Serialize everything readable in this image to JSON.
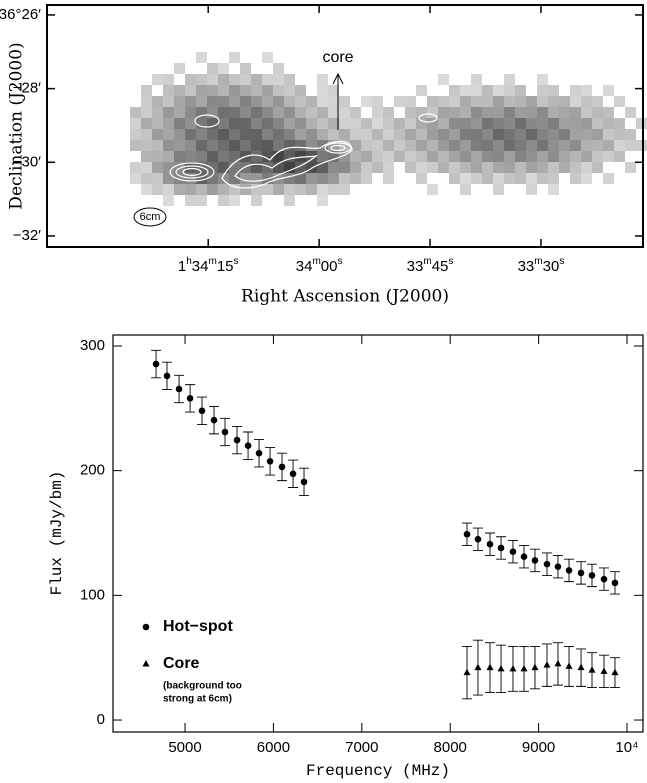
{
  "chart_data": [
    {
      "type": "image",
      "xlabel": "Right Ascension (J2000)",
      "ylabel": "Declination (J2000)",
      "xlim": [
        96.8,
        16.2
      ],
      "ylim": [
        -32.3,
        -25.73
      ],
      "xticks": [
        {
          "value": 75,
          "label": "1h34m15s"
        },
        {
          "value": 60,
          "label": "34m00s"
        },
        {
          "value": 45,
          "label": "33m45s"
        },
        {
          "value": 30,
          "label": "33m30s"
        }
      ],
      "yticks": [
        {
          "value": -26,
          "label": "−36°26′"
        },
        {
          "value": -28,
          "label": "−28′"
        },
        {
          "value": -30,
          "label": "−30′"
        },
        {
          "value": -32,
          "label": "−32′"
        }
      ],
      "annotations": [
        "core",
        "6cm"
      ]
    },
    {
      "type": "scatter",
      "xlabel": "Frequency (MHz)",
      "ylabel": "Flux (mJy/bm)",
      "xlim": [
        4185,
        10181
      ],
      "ylim": [
        -9.6,
        308.8
      ],
      "xticks": [
        5000,
        6000,
        7000,
        8000,
        9000,
        {
          "value": 10000,
          "label": "10⁴"
        }
      ],
      "yticks": [
        0,
        100,
        200,
        300
      ],
      "series": [
        {
          "name": "Hot−spot",
          "color": "#000000",
          "marker": "circle",
          "x": [
            4672,
            4796,
            4932,
            5057,
            5192,
            5328,
            5452,
            5588,
            5713,
            5837,
            5962,
            6097,
            6222,
            6346,
            8190,
            8314,
            8450,
            8575,
            8710,
            8835,
            8959,
            9095,
            9219,
            9344,
            9480,
            9604,
            9740,
            9864
          ],
          "values": [
            285.5,
            276,
            265.5,
            258,
            248,
            240.5,
            231,
            224.5,
            220,
            214,
            207.5,
            203,
            197.5,
            191,
            149,
            145,
            141,
            138,
            135,
            131,
            128,
            125,
            123,
            120,
            118,
            116,
            113,
            110
          ],
          "errors": [
            11,
            11,
            11,
            11,
            11,
            11,
            11,
            11,
            11,
            11,
            11,
            11,
            11,
            11,
            9,
            9,
            9,
            9,
            9,
            9,
            9,
            9,
            9,
            9,
            9,
            9,
            9,
            9
          ]
        },
        {
          "name": "Core",
          "color": "#000000",
          "marker": "triangle",
          "x": [
            8190,
            8314,
            8450,
            8575,
            8710,
            8835,
            8959,
            9095,
            9219,
            9344,
            9480,
            9604,
            9740,
            9864
          ],
          "values": [
            38,
            42,
            42,
            41,
            41,
            41,
            42,
            44,
            45,
            43,
            42,
            40,
            39,
            38
          ],
          "errors": [
            21,
            22,
            20,
            19,
            18,
            18,
            17,
            17,
            17,
            16,
            15,
            14,
            13,
            12
          ]
        }
      ],
      "legend_note": [
        "(background too",
        "strong at 6cm)"
      ]
    }
  ]
}
